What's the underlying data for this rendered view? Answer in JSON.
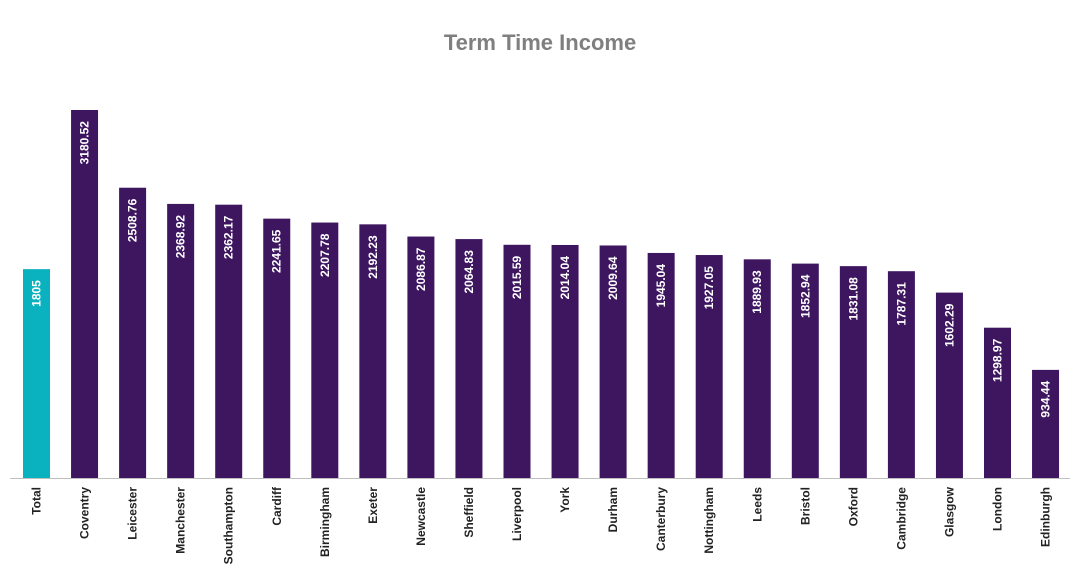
{
  "chart_data": {
    "type": "bar",
    "title": "Term Time Income",
    "xlabel": "",
    "ylabel": "",
    "categories": [
      "Total",
      "Coventry",
      "Leicester",
      "Manchester",
      "Southampton",
      "Cardiff",
      "Birmingham",
      "Exeter",
      "Newcastle",
      "Sheffield",
      "Liverpool",
      "York",
      "Durham",
      "Canterbury",
      "Nottingham",
      "Leeds",
      "Bristol",
      "Oxford",
      "Cambridge",
      "Glasgow",
      "London",
      "Edinburgh"
    ],
    "values": [
      1805,
      3180.52,
      2508.76,
      2368.92,
      2362.17,
      2241.65,
      2207.78,
      2192.23,
      2086.87,
      2064.83,
      2015.59,
      2014.04,
      2009.64,
      1945.04,
      1927.05,
      1889.93,
      1852.94,
      1831.08,
      1787.31,
      1602.29,
      1298.97,
      934.44
    ],
    "value_labels": [
      "1805",
      "3180.52",
      "2508.76",
      "2368.92",
      "2362.17",
      "2241.65",
      "2207.78",
      "2192.23",
      "2086.87",
      "2064.83",
      "2015.59",
      "2014.04",
      "2009.64",
      "1945.04",
      "1927.05",
      "1889.93",
      "1852.94",
      "1831.08",
      "1787.31",
      "1602.29",
      "1298.97",
      "934.44"
    ],
    "ylim": [
      0,
      3180.52
    ],
    "grid": false,
    "legend": "none",
    "colors": {
      "highlight": "#0AB1BE",
      "bar": "#3E1660",
      "axis": "#bfbfbf"
    },
    "highlight_category": "Total"
  }
}
